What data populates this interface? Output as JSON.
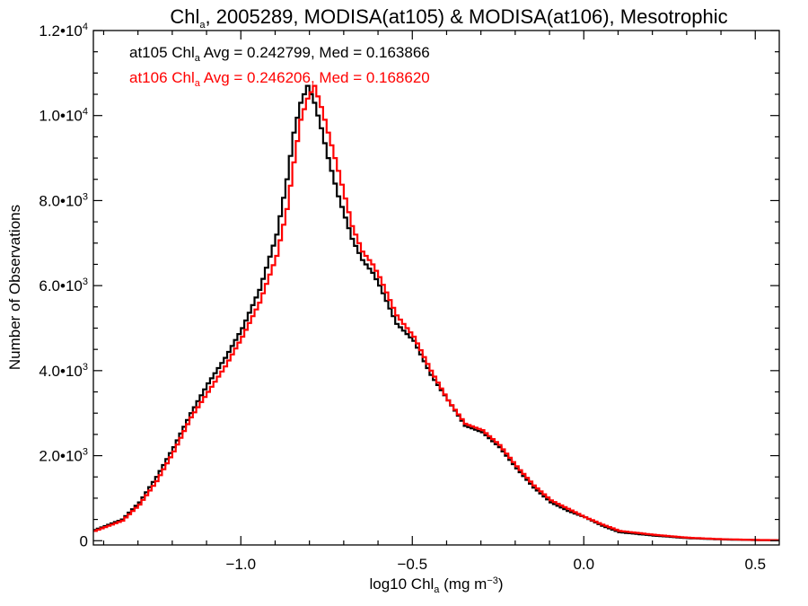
{
  "chart_data": {
    "type": "line",
    "title": {
      "pre": "Chl",
      "sub": "a",
      "post": ", 2005289, MODISA(at105) & MODISA(at106), Mesotrophic"
    },
    "xlabel": {
      "pre": "log10 Chl",
      "sub": "a",
      "mid": " (mg m",
      "sup": "−3",
      "post": ")"
    },
    "ylabel": "Number of Observations",
    "xlim": [
      -1.43,
      0.57
    ],
    "ylim": [
      -100,
      12000
    ],
    "x_ticks": [
      {
        "value": -1.0,
        "label": "−1.0"
      },
      {
        "value": -0.5,
        "label": "−0.5"
      },
      {
        "value": 0.0,
        "label": "0.0"
      },
      {
        "value": 0.5,
        "label": "0.5"
      }
    ],
    "x_minor_step": 0.1,
    "y_ticks": [
      {
        "value": 0,
        "mant": "0",
        "exp": ""
      },
      {
        "value": 2000,
        "mant": "2.0•10",
        "exp": "3"
      },
      {
        "value": 4000,
        "mant": "4.0•10",
        "exp": "3"
      },
      {
        "value": 6000,
        "mant": "6.0•10",
        "exp": "3"
      },
      {
        "value": 8000,
        "mant": "8.0•10",
        "exp": "3"
      },
      {
        "value": 10000,
        "mant": "1.0•10",
        "exp": "4"
      },
      {
        "value": 12000,
        "mant": "1.2•10",
        "exp": "4"
      }
    ],
    "y_minor_step": 500,
    "grid": false,
    "annotations": [
      {
        "prefix": "at105 Chl",
        "sub": "a",
        "rest": " Avg = 0.242799, Med = 0.163866",
        "color": "#000000"
      },
      {
        "prefix": "at106 Chl",
        "sub": "a",
        "rest": " Avg = 0.246206, Med = 0.168620",
        "color": "#ff0000"
      }
    ],
    "series": [
      {
        "color": "#000000",
        "points": [
          [
            -1.43,
            250
          ],
          [
            -1.35,
            500
          ],
          [
            -1.3,
            900
          ],
          [
            -1.25,
            1500
          ],
          [
            -1.2,
            2200
          ],
          [
            -1.15,
            3000
          ],
          [
            -1.1,
            3700
          ],
          [
            -1.05,
            4300
          ],
          [
            -1.0,
            5000
          ],
          [
            -0.95,
            5900
          ],
          [
            -0.9,
            7200
          ],
          [
            -0.87,
            8500
          ],
          [
            -0.85,
            9600
          ],
          [
            -0.83,
            10300
          ],
          [
            -0.81,
            10700
          ],
          [
            -0.79,
            10300
          ],
          [
            -0.77,
            9700
          ],
          [
            -0.75,
            9000
          ],
          [
            -0.72,
            8100
          ],
          [
            -0.68,
            7100
          ],
          [
            -0.65,
            6600
          ],
          [
            -0.62,
            6300
          ],
          [
            -0.6,
            6000
          ],
          [
            -0.55,
            5100
          ],
          [
            -0.5,
            4700
          ],
          [
            -0.45,
            3900
          ],
          [
            -0.4,
            3300
          ],
          [
            -0.35,
            2700
          ],
          [
            -0.3,
            2550
          ],
          [
            -0.25,
            2200
          ],
          [
            -0.2,
            1700
          ],
          [
            -0.15,
            1250
          ],
          [
            -0.1,
            900
          ],
          [
            -0.05,
            700
          ],
          [
            0.0,
            550
          ],
          [
            0.05,
            350
          ],
          [
            0.1,
            200
          ],
          [
            0.2,
            120
          ],
          [
            0.3,
            60
          ],
          [
            0.4,
            30
          ],
          [
            0.5,
            15
          ],
          [
            0.57,
            10
          ]
        ]
      },
      {
        "color": "#ff0000",
        "points": [
          [
            -1.43,
            230
          ],
          [
            -1.35,
            470
          ],
          [
            -1.3,
            850
          ],
          [
            -1.25,
            1400
          ],
          [
            -1.2,
            2100
          ],
          [
            -1.15,
            2900
          ],
          [
            -1.1,
            3500
          ],
          [
            -1.05,
            4100
          ],
          [
            -1.0,
            4800
          ],
          [
            -0.95,
            5600
          ],
          [
            -0.9,
            6700
          ],
          [
            -0.87,
            7800
          ],
          [
            -0.85,
            8900
          ],
          [
            -0.83,
            9900
          ],
          [
            -0.81,
            10400
          ],
          [
            -0.79,
            10700
          ],
          [
            -0.77,
            10200
          ],
          [
            -0.75,
            9600
          ],
          [
            -0.72,
            8700
          ],
          [
            -0.68,
            7400
          ],
          [
            -0.65,
            6800
          ],
          [
            -0.62,
            6500
          ],
          [
            -0.6,
            6200
          ],
          [
            -0.55,
            5300
          ],
          [
            -0.5,
            4800
          ],
          [
            -0.45,
            4000
          ],
          [
            -0.4,
            3300
          ],
          [
            -0.35,
            2750
          ],
          [
            -0.3,
            2600
          ],
          [
            -0.25,
            2250
          ],
          [
            -0.2,
            1750
          ],
          [
            -0.15,
            1300
          ],
          [
            -0.1,
            950
          ],
          [
            -0.05,
            750
          ],
          [
            0.0,
            550
          ],
          [
            0.05,
            380
          ],
          [
            0.1,
            230
          ],
          [
            0.2,
            140
          ],
          [
            0.3,
            70
          ],
          [
            0.4,
            35
          ],
          [
            0.5,
            18
          ],
          [
            0.57,
            12
          ]
        ]
      }
    ]
  }
}
